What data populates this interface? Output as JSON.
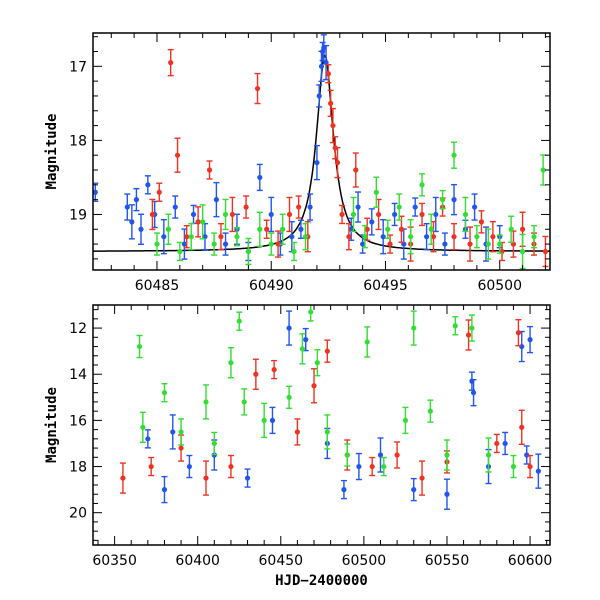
{
  "chart_data": [
    {
      "type": "scatter",
      "title": "",
      "xlabel": "",
      "ylabel": "Magnitude",
      "xlim": [
        60482.2,
        60502.2
      ],
      "ylim": [
        19.75,
        16.55
      ],
      "y_inverted": true,
      "xticks": [
        60485,
        60490,
        60495,
        60500
      ],
      "yticks": [
        17,
        18,
        19
      ],
      "series": [
        {
          "color": "#2255ee",
          "points": [
            [
              60482.3,
              18.7
            ],
            [
              60483.7,
              18.9
            ],
            [
              60483.9,
              19.1
            ],
            [
              60484.1,
              18.8
            ],
            [
              60484.3,
              19.2
            ],
            [
              60484.6,
              18.6
            ],
            [
              60484.9,
              19.0
            ],
            [
              60485.3,
              19.3
            ],
            [
              60485.8,
              18.9
            ],
            [
              60486.2,
              19.4
            ],
            [
              60486.6,
              19.0
            ],
            [
              60487.1,
              19.3
            ],
            [
              60487.6,
              18.8
            ],
            [
              60488.0,
              19.4
            ],
            [
              60488.5,
              19.2
            ],
            [
              60489.0,
              19.5
            ],
            [
              60489.5,
              18.5
            ],
            [
              60490.0,
              19.0
            ],
            [
              60490.4,
              19.4
            ],
            [
              60490.9,
              19.3
            ],
            [
              60491.3,
              19.2
            ],
            [
              60491.7,
              18.9
            ],
            [
              60492.0,
              18.3
            ],
            [
              60492.1,
              17.4
            ],
            [
              60492.2,
              17.0
            ],
            [
              60492.25,
              16.8
            ],
            [
              60492.3,
              16.75
            ],
            [
              60492.4,
              16.95
            ],
            [
              60493.5,
              19.2
            ],
            [
              60493.8,
              18.9
            ],
            [
              60494.0,
              19.4
            ],
            [
              60494.4,
              19.1
            ],
            [
              60494.9,
              19.3
            ],
            [
              60495.4,
              19.0
            ],
            [
              60495.8,
              19.4
            ],
            [
              60496.3,
              18.9
            ],
            [
              60496.8,
              19.3
            ],
            [
              60497.2,
              19.0
            ],
            [
              60497.6,
              19.4
            ],
            [
              60498.0,
              18.8
            ],
            [
              60498.5,
              19.2
            ],
            [
              60498.9,
              18.9
            ],
            [
              60499.4,
              19.4
            ],
            [
              60500.0,
              19.3
            ]
          ]
        },
        {
          "color": "#ee3322",
          "points": [
            [
              60484.8,
              19.0
            ],
            [
              60485.1,
              18.7
            ],
            [
              60485.6,
              16.95
            ],
            [
              60485.9,
              18.2
            ],
            [
              60486.3,
              19.3
            ],
            [
              60486.8,
              19.1
            ],
            [
              60487.3,
              18.4
            ],
            [
              60487.8,
              19.3
            ],
            [
              60488.3,
              19.0
            ],
            [
              60488.9,
              18.9
            ],
            [
              60489.4,
              17.3
            ],
            [
              60489.8,
              19.2
            ],
            [
              60490.3,
              19.4
            ],
            [
              60490.8,
              19.0
            ],
            [
              60491.2,
              18.9
            ],
            [
              60491.6,
              19.3
            ],
            [
              60492.5,
              17.1
            ],
            [
              60492.6,
              17.5
            ],
            [
              60492.7,
              17.8
            ],
            [
              60492.8,
              18.1
            ],
            [
              60492.9,
              18.3
            ],
            [
              60493.1,
              19.0
            ],
            [
              60493.4,
              19.3
            ],
            [
              60493.7,
              18.4
            ],
            [
              60494.2,
              19.2
            ],
            [
              60494.7,
              19.0
            ],
            [
              60495.2,
              19.4
            ],
            [
              60495.7,
              19.2
            ],
            [
              60496.1,
              19.4
            ],
            [
              60496.6,
              19.0
            ],
            [
              60497.1,
              19.3
            ],
            [
              60497.5,
              18.9
            ],
            [
              60498.0,
              19.3
            ],
            [
              60498.7,
              19.4
            ],
            [
              60499.2,
              19.1
            ],
            [
              60499.7,
              19.3
            ],
            [
              60500.1,
              19.5
            ],
            [
              60500.6,
              19.4
            ],
            [
              60501.0,
              19.2
            ],
            [
              60501.5,
              19.4
            ],
            [
              60502.0,
              19.5
            ]
          ]
        },
        {
          "color": "#33dd33",
          "points": [
            [
              60485.0,
              19.4
            ],
            [
              60485.5,
              19.2
            ],
            [
              60486.0,
              19.5
            ],
            [
              60486.5,
              19.3
            ],
            [
              60487.0,
              19.1
            ],
            [
              60487.5,
              19.4
            ],
            [
              60488.0,
              19.0
            ],
            [
              60488.5,
              19.3
            ],
            [
              60489.0,
              19.5
            ],
            [
              60489.5,
              19.2
            ],
            [
              60490.0,
              19.4
            ],
            [
              60490.5,
              19.2
            ],
            [
              60491.0,
              19.5
            ],
            [
              60491.5,
              19.3
            ],
            [
              60493.6,
              19.0
            ],
            [
              60494.1,
              19.3
            ],
            [
              60494.6,
              18.7
            ],
            [
              60495.1,
              19.2
            ],
            [
              60495.6,
              18.9
            ],
            [
              60496.1,
              19.3
            ],
            [
              60496.6,
              18.6
            ],
            [
              60497.0,
              19.2
            ],
            [
              60497.5,
              18.8
            ],
            [
              60498.0,
              18.2
            ],
            [
              60498.5,
              19.0
            ],
            [
              60499.0,
              19.3
            ],
            [
              60499.5,
              19.4
            ],
            [
              60500.0,
              19.4
            ],
            [
              60500.5,
              19.2
            ],
            [
              60501.0,
              19.5
            ],
            [
              60501.5,
              19.3
            ],
            [
              60501.9,
              18.4
            ]
          ]
        }
      ],
      "model_curve": {
        "color": "#000000",
        "baseline": 19.5,
        "peak_x": 60492.35,
        "peak_y": 16.85
      }
    },
    {
      "type": "scatter",
      "title": "",
      "xlabel": "HJD−2400000",
      "ylabel": "Magnitude",
      "xlim": [
        60337,
        60612
      ],
      "ylim": [
        21.4,
        11.0
      ],
      "y_inverted": true,
      "xticks": [
        60350,
        60400,
        60450,
        60500,
        60550,
        60600
      ],
      "yticks": [
        12,
        14,
        16,
        18,
        20
      ],
      "series": [
        {
          "color": "#2255ee",
          "points": [
            [
              60370,
              16.8
            ],
            [
              60380,
              19.0
            ],
            [
              60385,
              16.5
            ],
            [
              60395,
              18.0
            ],
            [
              60410,
              17.5
            ],
            [
              60430,
              18.5
            ],
            [
              60445,
              16.0
            ],
            [
              60455,
              12.0
            ],
            [
              60465,
              12.5
            ],
            [
              60478,
              17.0
            ],
            [
              60488,
              19.0
            ],
            [
              60497,
              18.0
            ],
            [
              60510,
              17.5
            ],
            [
              60530,
              19.0
            ],
            [
              60550,
              19.2
            ],
            [
              60565,
              14.3
            ],
            [
              60566,
              14.8
            ],
            [
              60575,
              18.0
            ],
            [
              60585,
              17.0
            ],
            [
              60595,
              12.8
            ],
            [
              60598,
              17.5
            ],
            [
              60600,
              12.5
            ],
            [
              60605,
              18.2
            ]
          ]
        },
        {
          "color": "#ee3322",
          "points": [
            [
              60355,
              18.5
            ],
            [
              60372,
              18.0
            ],
            [
              60390,
              17.2
            ],
            [
              60405,
              18.5
            ],
            [
              60420,
              18.0
            ],
            [
              60435,
              14.0
            ],
            [
              60446,
              13.8
            ],
            [
              60460,
              16.5
            ],
            [
              60470,
              14.5
            ],
            [
              60478,
              13.0
            ],
            [
              60490,
              17.5
            ],
            [
              60505,
              18.0
            ],
            [
              60520,
              17.5
            ],
            [
              60535,
              18.5
            ],
            [
              60550,
              17.8
            ],
            [
              60563,
              12.3
            ],
            [
              60580,
              17.0
            ],
            [
              60593,
              12.2
            ],
            [
              60595,
              16.3
            ],
            [
              60600,
              18.0
            ]
          ]
        },
        {
          "color": "#33dd33",
          "points": [
            [
              60365,
              12.8
            ],
            [
              60367,
              16.3
            ],
            [
              60380,
              14.8
            ],
            [
              60390,
              16.5
            ],
            [
              60405,
              15.2
            ],
            [
              60410,
              17.0
            ],
            [
              60420,
              13.5
            ],
            [
              60425,
              11.7
            ],
            [
              60428,
              15.2
            ],
            [
              60440,
              16.0
            ],
            [
              60455,
              15.0
            ],
            [
              60463,
              12.9
            ],
            [
              60468,
              11.3
            ],
            [
              60472,
              13.5
            ],
            [
              60478,
              16.5
            ],
            [
              60490,
              17.5
            ],
            [
              60502,
              12.6
            ],
            [
              60512,
              18.0
            ],
            [
              60525,
              16.0
            ],
            [
              60530,
              12.0
            ],
            [
              60540,
              15.6
            ],
            [
              60550,
              17.5
            ],
            [
              60555,
              11.9
            ],
            [
              60565,
              12.0
            ],
            [
              60575,
              17.5
            ],
            [
              60590,
              18.0
            ]
          ]
        }
      ]
    }
  ]
}
